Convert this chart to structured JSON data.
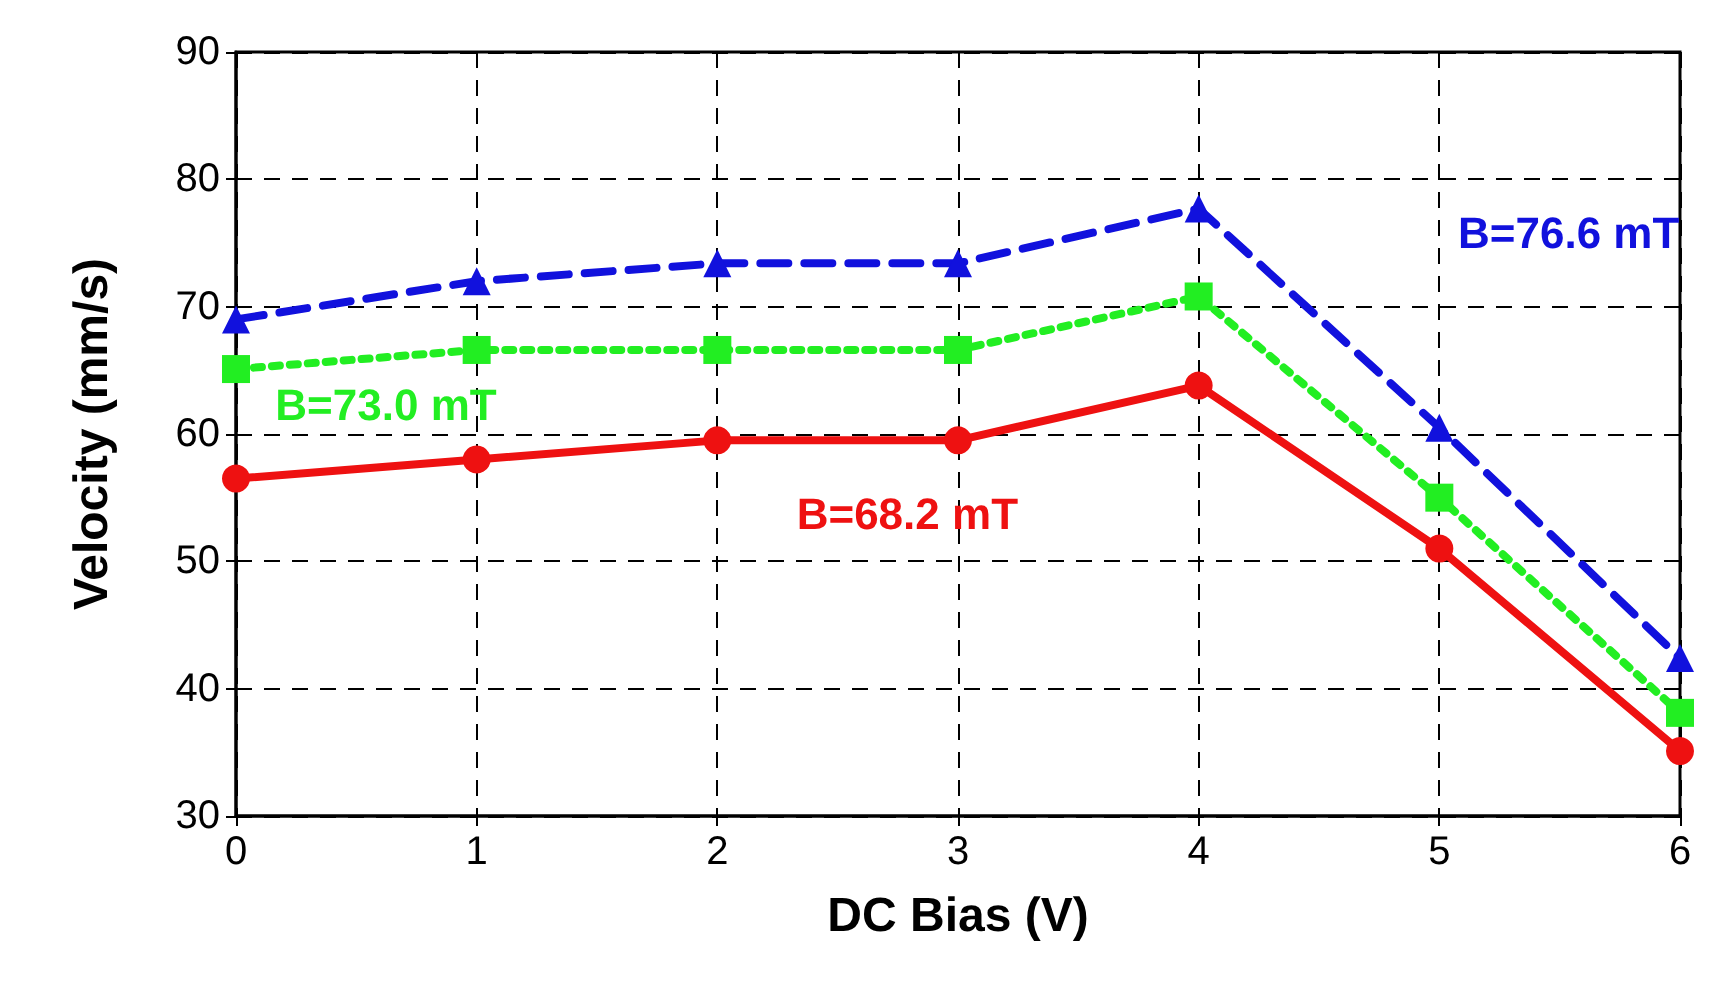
{
  "chart_data": {
    "type": "line",
    "xlabel": "DC Bias (V)",
    "ylabel": "Velocity (mm/s)",
    "x": [
      0,
      1,
      2,
      3,
      4,
      5,
      6
    ],
    "series": [
      {
        "name": "B=68.2 mT",
        "color": "#ee1111",
        "marker": "circle",
        "line_style": "solid",
        "values": [
          56.5,
          58.0,
          59.5,
          59.5,
          63.8,
          51.0,
          35.1
        ]
      },
      {
        "name": "B=73.0 mT",
        "color": "#22ee22",
        "marker": "square",
        "line_style": "dotted",
        "values": [
          65.1,
          66.6,
          66.6,
          66.6,
          70.8,
          55.0,
          38.1
        ]
      },
      {
        "name": "B=76.6 mT",
        "color": "#1111dd",
        "marker": "triangle",
        "line_style": "dashed",
        "values": [
          69.0,
          72.0,
          73.4,
          73.4,
          77.7,
          60.5,
          42.4
        ]
      }
    ],
    "xlim": [
      0,
      6
    ],
    "xticks": [
      0,
      1,
      2,
      3,
      4,
      5,
      6
    ],
    "ylim": [
      30,
      90
    ],
    "yticks": [
      30,
      40,
      50,
      60,
      70,
      80,
      90
    ],
    "grid": true,
    "legend": false
  }
}
